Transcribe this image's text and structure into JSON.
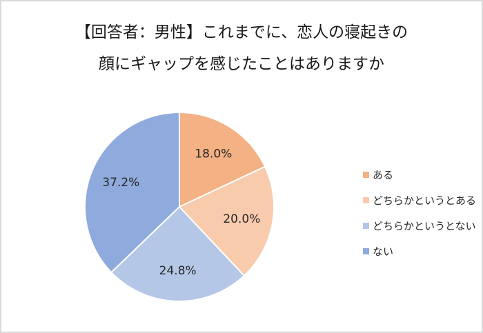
{
  "title": {
    "line1": "【回答者：男性】これまでに、恋人の寝起きの",
    "line2": "顔にギャップを感じたことはありますか"
  },
  "legend": {
    "items": [
      {
        "label": "ある",
        "color": "#f4b183"
      },
      {
        "label": "どちらかというとある",
        "color": "#f8cbad"
      },
      {
        "label": "どちらかというとない",
        "color": "#b4c7e7"
      },
      {
        "label": "ない",
        "color": "#8faadc"
      }
    ]
  },
  "chart_data": {
    "type": "pie",
    "title": "【回答者：男性】これまでに、恋人の寝起きの顔にギャップを感じたことはありますか",
    "categories": [
      "ある",
      "どちらかというとある",
      "どちらかというとない",
      "ない"
    ],
    "values": [
      18.0,
      20.0,
      24.8,
      37.2
    ],
    "data_labels": [
      "18.0%",
      "20.0%",
      "24.8%",
      "37.2%"
    ],
    "colors": [
      "#f4b183",
      "#f8cbad",
      "#b4c7e7",
      "#8faadc"
    ],
    "start_angle": "12 o'clock, clockwise",
    "legend_position": "right"
  }
}
